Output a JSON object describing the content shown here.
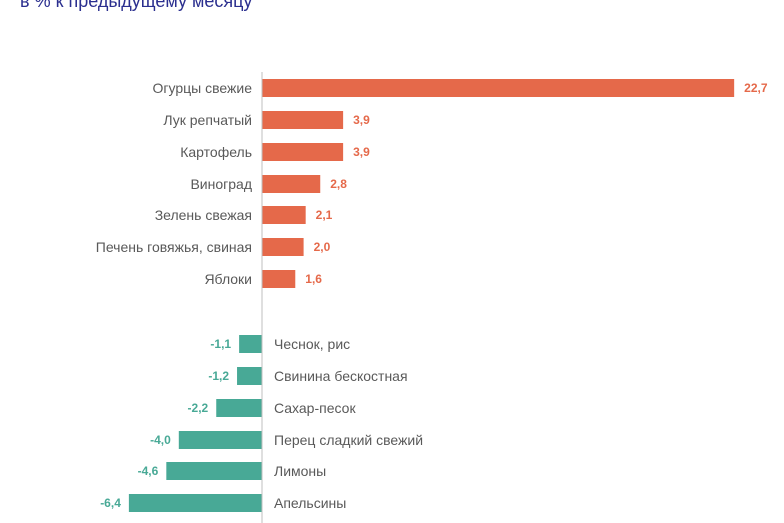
{
  "chart_data": {
    "type": "bar",
    "orientation": "horizontal",
    "subtitle": "в % к предыдущему месяцу",
    "colors": {
      "positive": "#E5694A",
      "negative": "#48A996"
    },
    "grid": false,
    "categories": [
      "Огурцы свежие",
      "Лук репчатый",
      "Картофель",
      "Виноград",
      "Зелень свежая",
      "Печень говяжья, свиная",
      "Яблоки",
      "Чеснок, рис",
      "Свинина бескостная",
      "Сахар-песок",
      "Перец сладкий свежий",
      "Лимоны",
      "Апельсины"
    ],
    "values": [
      22.7,
      3.9,
      3.9,
      2.8,
      2.1,
      2.0,
      1.6,
      -1.1,
      -1.2,
      -2.2,
      -4.0,
      -4.6,
      -6.4
    ],
    "labels": [
      "22,7",
      "3,9",
      "3,9",
      "2,8",
      "2,1",
      "2,0",
      "1,6",
      "-1,1",
      "-1,2",
      "-2,2",
      "-4,0",
      "-4,6",
      "-6,4"
    ]
  }
}
